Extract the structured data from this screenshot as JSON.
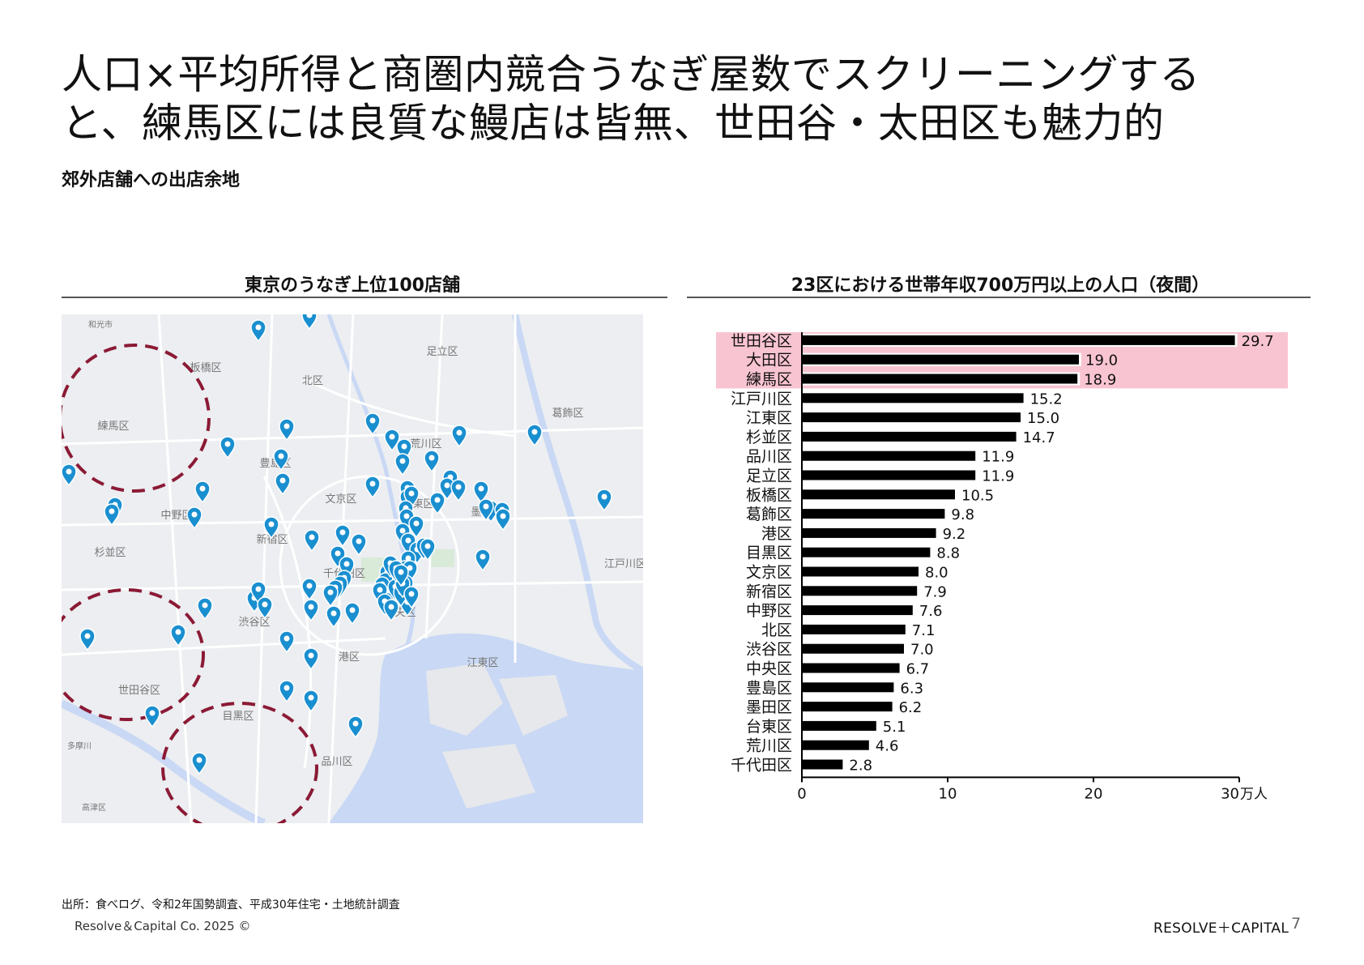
{
  "slide": {
    "title": "人口×平均所得と商圏内競合うなぎ屋数でスクリーニングすると、練馬区には良質な鰻店は皆無、世田谷・太田区も魅力的",
    "subtitle": "郊外店舗への出店余地",
    "source": "出所：食べログ、令和2年国勢調査、平成30年住宅・土地統計調査",
    "copyright": "Resolve＆Capital Co. 2025 ©",
    "brand": "RESOLVE＋CAPITAL",
    "page_number": "7"
  },
  "map_panel": {
    "title": "東京のうなぎ上位100店舗",
    "marker_icon": "location-pin-icon",
    "marker_color": "#1a8fd0",
    "circle_color": "#8b1a35",
    "labels": [
      "和光市",
      "足立区",
      "板橋区",
      "北区",
      "葛飾区",
      "練馬区",
      "荒川区",
      "豊島区",
      "文京区",
      "台東区",
      "墨田区",
      "中野区",
      "杉並区",
      "新宿区",
      "江戸川区",
      "千代田区",
      "東京",
      "中央区",
      "渋谷区",
      "港区",
      "江東区",
      "世田谷区",
      "目黒区",
      "品川区",
      "多摩川",
      "高津区"
    ]
  },
  "chart_panel": {
    "title": "23区における世帯年収700万円以上の人口（夜間）",
    "highlight_color": "#f9c4d2",
    "bar_color": "#000000",
    "unit_label": "万人"
  },
  "chart_data": {
    "type": "bar",
    "orientation": "horizontal",
    "categories": [
      "世田谷区",
      "大田区",
      "練馬区",
      "江戸川区",
      "江東区",
      "杉並区",
      "品川区",
      "足立区",
      "板橋区",
      "葛飾区",
      "港区",
      "目黒区",
      "文京区",
      "新宿区",
      "中野区",
      "北区",
      "渋谷区",
      "中央区",
      "豊島区",
      "墨田区",
      "台東区",
      "荒川区",
      "千代田区"
    ],
    "values": [
      29.7,
      19.0,
      18.9,
      15.2,
      15.0,
      14.7,
      11.9,
      11.9,
      10.5,
      9.8,
      9.2,
      8.8,
      8.0,
      7.9,
      7.6,
      7.1,
      7.0,
      6.7,
      6.3,
      6.2,
      5.1,
      4.6,
      2.8
    ],
    "value_labels": [
      "29.7",
      "19.0",
      "18.9",
      "15.2",
      "15.0",
      "14.7",
      "11.9",
      "11.9",
      "10.5",
      "9.8",
      "9.2",
      "8.8",
      "8.0",
      "7.9",
      "7.6",
      "7.1",
      "7.0",
      "6.7",
      "6.3",
      "6.2",
      "5.1",
      "4.6",
      "2.8"
    ],
    "highlighted": [
      "世田谷区",
      "大田区",
      "練馬区"
    ],
    "xlim": [
      0,
      30
    ],
    "xticks": [
      0,
      10,
      20,
      30
    ],
    "xtick_labels": [
      "0",
      "10",
      "20",
      "30"
    ],
    "xlabel": "万人"
  }
}
